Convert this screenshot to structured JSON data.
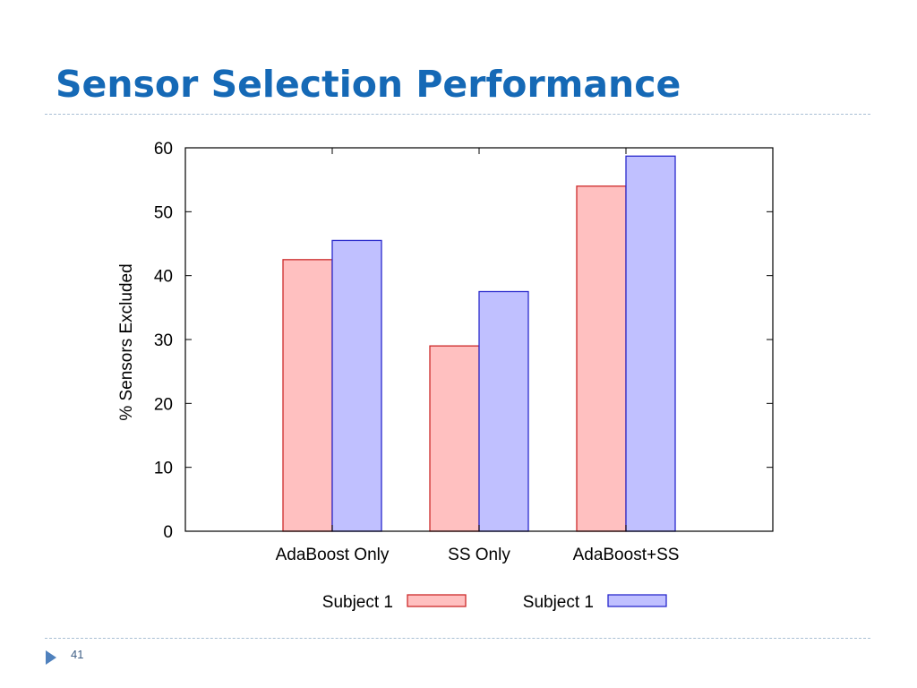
{
  "slide": {
    "title": "Sensor Selection Performance",
    "page_number": "41"
  },
  "colors": {
    "title": "#1569b6",
    "series_1_fill": "#ffc0c0",
    "series_1_stroke": "#cc2a2a",
    "series_2_fill": "#c0c0ff",
    "series_2_stroke": "#2a2acc"
  },
  "icons": {
    "footer_bullet": "triangle-right-icon"
  },
  "chart_data": {
    "type": "bar",
    "title": "",
    "xlabel": "",
    "ylabel": "% Sensors Excluded",
    "categories": [
      "AdaBoost Only",
      "SS Only",
      "AdaBoost+SS"
    ],
    "series": [
      {
        "name": "Subject 1",
        "values": [
          42.5,
          29,
          54
        ]
      },
      {
        "name": "Subject 1",
        "values": [
          45.5,
          37.5,
          58.7
        ]
      }
    ],
    "ylim": [
      0,
      60
    ],
    "yticks": [
      "0",
      "10",
      "20",
      "30",
      "40",
      "50",
      "60"
    ],
    "grid": false,
    "legend_position": "bottom"
  }
}
